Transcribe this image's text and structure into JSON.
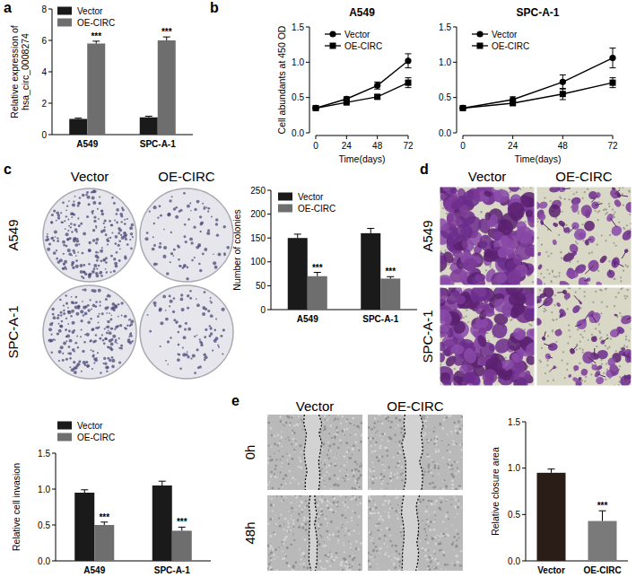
{
  "panel_labels": [
    "a",
    "b",
    "c",
    "d",
    "e"
  ],
  "images": {
    "c": {
      "columns": [
        "Vector",
        "OE-CIRC"
      ],
      "rows": [
        "A549",
        "SPC-A-1"
      ]
    },
    "d": {
      "columns": [
        "Vector",
        "OE-CIRC"
      ],
      "rows": [
        "A549",
        "SPC-A-1"
      ]
    },
    "e": {
      "columns": [
        "Vector",
        "OE-CIRC"
      ],
      "rows": [
        "0h",
        "48h"
      ]
    }
  },
  "chart_data": [
    {
      "type": "bar",
      "categories": [
        "A549",
        "SPC-A-1"
      ],
      "y_label": "Relative expression of hsa_circ_0008274",
      "ylim": [
        0,
        8
      ],
      "yticks": [
        0,
        2,
        4,
        6,
        8
      ],
      "legend": "upper left",
      "series": [
        {
          "name": "Vector",
          "color": "#1a1a1a",
          "values": [
            1.0,
            1.1
          ],
          "errors": [
            0.05,
            0.07
          ]
        },
        {
          "name": "OE-CIRC",
          "color": "#6e6e6e",
          "values": [
            5.8,
            6.0
          ],
          "errors": [
            0.15,
            0.22
          ],
          "annotations": [
            "***",
            "***"
          ]
        }
      ]
    },
    {
      "type": "line",
      "title": "A549",
      "x_label": "Time(days)",
      "y_label": "Cell abundants at 450 OD",
      "x": [
        0,
        24,
        48,
        72
      ],
      "xlim": [
        0,
        72
      ],
      "xticks": [
        0,
        24,
        48,
        72
      ],
      "ylim": [
        0,
        1.5
      ],
      "yticks": [
        {
          "value": 0,
          "label": "0.0"
        },
        {
          "value": 0.5,
          "label": "0.5"
        },
        {
          "value": 1,
          "label": "1.0"
        },
        {
          "value": 1.5,
          "label": "1.5"
        }
      ],
      "legend": "upper left",
      "series": [
        {
          "name": "Vector",
          "color": "#000000",
          "marker": "circle",
          "values": [
            0.35,
            0.48,
            0.67,
            1.02
          ],
          "errors": [
            0.01,
            0.03,
            0.05,
            0.1
          ]
        },
        {
          "name": "OE-CIRC",
          "color": "#000000",
          "marker": "square",
          "values": [
            0.35,
            0.43,
            0.51,
            0.71
          ],
          "errors": [
            0.01,
            0.02,
            0.03,
            0.07
          ]
        }
      ]
    },
    {
      "type": "line",
      "title": "SPC-A-1",
      "x_label": "Time(days)",
      "x": [
        0,
        24,
        48,
        72
      ],
      "xlim": [
        0,
        72
      ],
      "xticks": [
        0,
        24,
        48,
        72
      ],
      "ylim": [
        0,
        1.5
      ],
      "yticks": [
        {
          "value": 0,
          "label": "0.0"
        },
        {
          "value": 0.5,
          "label": "0.5"
        },
        {
          "value": 1,
          "label": "1.0"
        },
        {
          "value": 1.5,
          "label": "1.5"
        }
      ],
      "legend": "upper left",
      "series": [
        {
          "name": "Vector",
          "color": "#000000",
          "marker": "circle",
          "values": [
            0.35,
            0.47,
            0.72,
            1.06
          ],
          "errors": [
            0.01,
            0.04,
            0.1,
            0.14
          ]
        },
        {
          "name": "OE-CIRC",
          "color": "#000000",
          "marker": "square",
          "values": [
            0.35,
            0.42,
            0.55,
            0.71
          ],
          "errors": [
            0.01,
            0.03,
            0.08,
            0.07
          ]
        }
      ]
    },
    {
      "type": "bar",
      "categories": [
        "A549",
        "SPC-A-1"
      ],
      "y_label": "Number of colonies",
      "ylim": [
        0,
        250
      ],
      "yticks": [
        0,
        50,
        100,
        150,
        200,
        250
      ],
      "legend": "upper left",
      "series": [
        {
          "name": "Vector",
          "color": "#1a1a1a",
          "values": [
            150,
            160
          ],
          "errors": [
            8,
            10
          ]
        },
        {
          "name": "OE-CIRC",
          "color": "#6e6e6e",
          "values": [
            70,
            65
          ],
          "errors": [
            8,
            4
          ],
          "annotations": [
            "***",
            "***"
          ]
        }
      ]
    },
    {
      "type": "bar",
      "categories": [
        "A549",
        "SPC-A-1"
      ],
      "y_label": "Relative cell invasion",
      "ylim": [
        0,
        1.5
      ],
      "yticks": [
        {
          "value": 0,
          "label": "0.0"
        },
        {
          "value": 0.5,
          "label": "0.5"
        },
        {
          "value": 1,
          "label": "1.0"
        },
        {
          "value": 1.5,
          "label": "1.5"
        }
      ],
      "legend": "upper left",
      "series": [
        {
          "name": "Vector",
          "color": "#1a1a1a",
          "values": [
            0.95,
            1.05
          ],
          "errors": [
            0.04,
            0.06
          ]
        },
        {
          "name": "OE-CIRC",
          "color": "#6e6e6e",
          "values": [
            0.5,
            0.42
          ],
          "errors": [
            0.04,
            0.05
          ],
          "annotations": [
            "***",
            "***"
          ]
        }
      ]
    },
    {
      "type": "bar",
      "categories": [
        "Vector",
        "OE-CIRC"
      ],
      "y_label": "Relative closure area",
      "ylim": [
        0,
        1.5
      ],
      "yticks": [
        {
          "value": 0,
          "label": "0.0"
        },
        {
          "value": 0.5,
          "label": "0.5"
        },
        {
          "value": 1,
          "label": "1.0"
        },
        {
          "value": 1.5,
          "label": "1.5"
        }
      ],
      "series": [
        {
          "colors": [
            "#2a1d17",
            "#7a7a7a"
          ],
          "values": [
            0.95,
            0.43
          ],
          "errors": [
            0.04,
            0.11
          ],
          "annotations": [
            null,
            "***"
          ]
        }
      ]
    }
  ]
}
